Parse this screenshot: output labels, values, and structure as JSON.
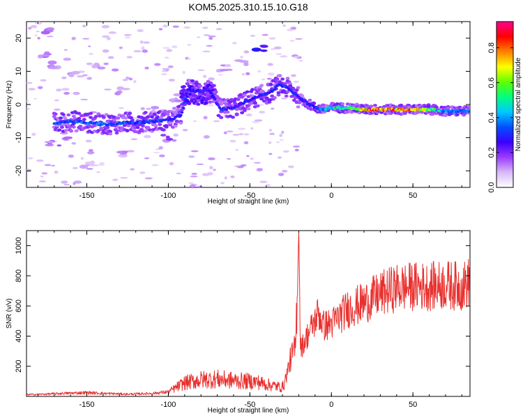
{
  "title": "KOM5.2025.310.15.10.G18",
  "colors": {
    "snr_line": "#e8302e",
    "axis": "#000000",
    "background": "#ffffff"
  },
  "chart_data": [
    {
      "type": "heatmap",
      "title": "KOM5.2025.310.15.10.G18",
      "xlabel": "Height of straight line (km)",
      "ylabel": "Frequency (Hz)",
      "xlim": [
        -187,
        85
      ],
      "ylim": [
        -25,
        25
      ],
      "xticks": [
        -150,
        -100,
        -50,
        0,
        50
      ],
      "yticks": [
        -20,
        -10,
        0,
        10,
        20
      ],
      "colorbar": {
        "label": "Normalized spectral amplitude",
        "range": [
          0.0,
          0.95
        ],
        "ticks": [
          0.0,
          0.2,
          0.4,
          0.6,
          0.8
        ],
        "colormap": [
          "#ffffff",
          "#d8b8f8",
          "#9b3cff",
          "#3a00ff",
          "#0050ff",
          "#00c8ff",
          "#00ff80",
          "#60ff00",
          "#ffff00",
          "#ff8000",
          "#ff0000",
          "#ff0090"
        ]
      },
      "ridge": [
        {
          "x": -167,
          "f": -5.5,
          "a": 0.35
        },
        {
          "x": -158,
          "f": -5.0,
          "a": 0.35
        },
        {
          "x": -148,
          "f": -5.5,
          "a": 0.4
        },
        {
          "x": -138,
          "f": -6.0,
          "a": 0.38
        },
        {
          "x": -128,
          "f": -5.5,
          "a": 0.35
        },
        {
          "x": -118,
          "f": -5.5,
          "a": 0.35
        },
        {
          "x": -108,
          "f": -5.0,
          "a": 0.35
        },
        {
          "x": -98,
          "f": -4.5,
          "a": 0.3
        },
        {
          "x": -92,
          "f": -3.0,
          "a": 0.3
        },
        {
          "x": -88,
          "f": 4.5,
          "a": 0.3
        },
        {
          "x": -80,
          "f": 4.0,
          "a": 0.3
        },
        {
          "x": -75,
          "f": 4.5,
          "a": 0.25
        },
        {
          "x": -68,
          "f": -1.5,
          "a": 0.3
        },
        {
          "x": -60,
          "f": -1.0,
          "a": 0.3
        },
        {
          "x": -52,
          "f": 1.0,
          "a": 0.3
        },
        {
          "x": -45,
          "f": 2.5,
          "a": 0.3
        },
        {
          "x": -38,
          "f": 3.5,
          "a": 0.3
        },
        {
          "x": -32,
          "f": 6.0,
          "a": 0.35
        },
        {
          "x": -25,
          "f": 4.5,
          "a": 0.3
        },
        {
          "x": -20,
          "f": 2.0,
          "a": 0.3
        },
        {
          "x": -15,
          "f": 0.5,
          "a": 0.3
        },
        {
          "x": -10,
          "f": -1.0,
          "a": 0.35
        },
        {
          "x": -5,
          "f": -1.5,
          "a": 0.4
        },
        {
          "x": 0,
          "f": -1.0,
          "a": 0.5
        },
        {
          "x": 10,
          "f": -1.0,
          "a": 0.55
        },
        {
          "x": 20,
          "f": -1.5,
          "a": 0.8
        },
        {
          "x": 30,
          "f": -1.5,
          "a": 0.85
        },
        {
          "x": 40,
          "f": -1.5,
          "a": 0.85
        },
        {
          "x": 50,
          "f": -1.5,
          "a": 0.8
        },
        {
          "x": 60,
          "f": -1.5,
          "a": 0.6
        },
        {
          "x": 70,
          "f": -2.0,
          "a": 0.4
        },
        {
          "x": 80,
          "f": -2.0,
          "a": 0.4
        },
        {
          "x": 85,
          "f": -2.0,
          "a": 0.35
        }
      ],
      "patches": [
        {
          "x": -45,
          "f": 17,
          "a": 0.3
        },
        {
          "x": -55,
          "f": 13,
          "a": 0.15
        },
        {
          "x": -65,
          "f": 11,
          "a": 0.12
        },
        {
          "x": -175,
          "f": 22,
          "a": 0.15
        },
        {
          "x": -178,
          "f": 15,
          "a": 0.15
        },
        {
          "x": -170,
          "f": 12,
          "a": 0.12
        },
        {
          "x": -160,
          "f": 9,
          "a": 0.12
        },
        {
          "x": -145,
          "f": 12,
          "a": 0.12
        },
        {
          "x": -170,
          "f": -12,
          "a": 0.15
        },
        {
          "x": -160,
          "f": -11,
          "a": 0.15
        },
        {
          "x": -100,
          "f": -10,
          "a": 0.18
        },
        {
          "x": -125,
          "f": -15,
          "a": 0.12
        },
        {
          "x": -150,
          "f": -18,
          "a": 0.1
        },
        {
          "x": -95,
          "f": 2,
          "a": 0.15
        },
        {
          "x": -112,
          "f": -2,
          "a": 0.12
        },
        {
          "x": -130,
          "f": 4,
          "a": 0.12
        }
      ]
    },
    {
      "type": "line",
      "xlabel": "Height of straight line (km)",
      "ylabel": "SNR (v/v)",
      "xlim": [
        -187,
        85
      ],
      "ylim": [
        0,
        1100
      ],
      "xticks": [
        -150,
        -100,
        -50,
        0,
        50
      ],
      "yticks": [
        200,
        400,
        600,
        800,
        1000
      ],
      "series": [
        {
          "name": "SNR",
          "x": [
            -187,
            -175,
            -165,
            -150,
            -140,
            -125,
            -110,
            -100,
            -95,
            -90,
            -80,
            -70,
            -60,
            -50,
            -45,
            -40,
            -35,
            -30,
            -28,
            -25,
            -22,
            -20,
            -19,
            -18,
            -15,
            -10,
            -8,
            -5,
            0,
            10,
            20,
            30,
            40,
            50,
            60,
            70,
            80,
            85
          ],
          "y": [
            12,
            15,
            20,
            25,
            20,
            15,
            20,
            30,
            60,
            90,
            110,
            115,
            105,
            100,
            95,
            80,
            70,
            60,
            120,
            250,
            320,
            1100,
            350,
            330,
            400,
            500,
            560,
            470,
            480,
            580,
            620,
            680,
            720,
            730,
            730,
            740,
            730,
            760
          ]
        }
      ]
    }
  ]
}
